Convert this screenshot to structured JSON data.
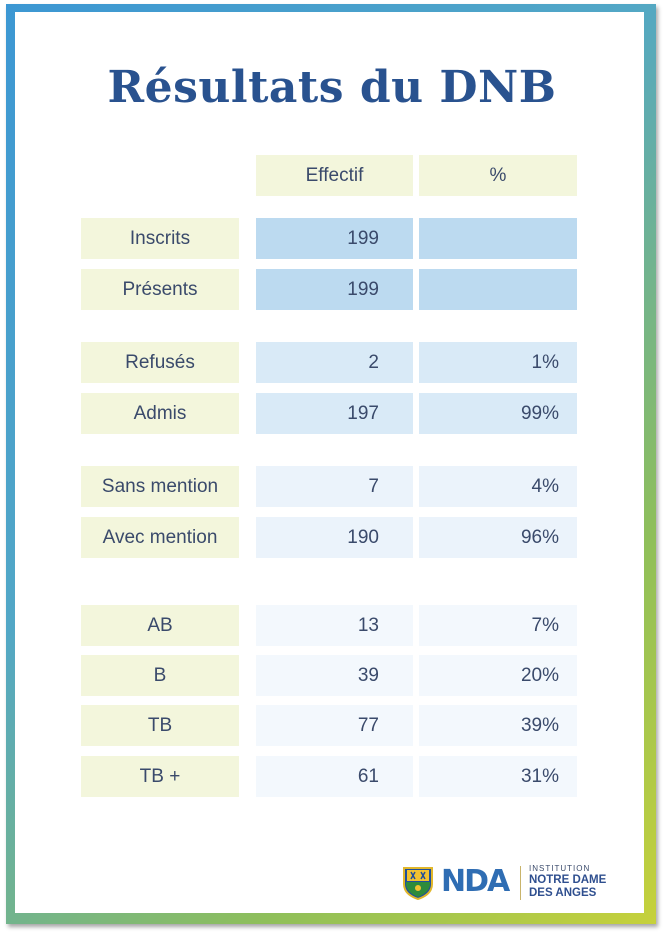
{
  "title": "Résultats du DNB",
  "headers": {
    "effectif": "Effectif",
    "percent": "%"
  },
  "rows": [
    {
      "label": "Inscrits",
      "effectif": "199",
      "percent": ""
    },
    {
      "label": "Présents",
      "effectif": "199",
      "percent": ""
    },
    {
      "label": "Refusés",
      "effectif": "2",
      "percent": "1%"
    },
    {
      "label": "Admis",
      "effectif": "197",
      "percent": "99%"
    },
    {
      "label": "Sans mention",
      "effectif": "7",
      "percent": "4%"
    },
    {
      "label": "Avec mention",
      "effectif": "190",
      "percent": "96%"
    },
    {
      "label": "AB",
      "effectif": "13",
      "percent": "7%"
    },
    {
      "label": "B",
      "effectif": "39",
      "percent": "20%"
    },
    {
      "label": "TB",
      "effectif": "77",
      "percent": "39%"
    },
    {
      "label": "TB +",
      "effectif": "61",
      "percent": "31%"
    }
  ],
  "logo": {
    "mark": "NDA",
    "institution": "INSTITUTION",
    "name_line1": "NOTRE DAME",
    "name_line2": "DES ANGES"
  },
  "colors": {
    "title": "#29528f",
    "label_bg": "#f3f6dc",
    "blue_dark": "#bcdaf0",
    "blue_mid": "#d9eaf7",
    "blue_light": "#ebf3fb",
    "blue_pale": "#f3f8fd"
  }
}
